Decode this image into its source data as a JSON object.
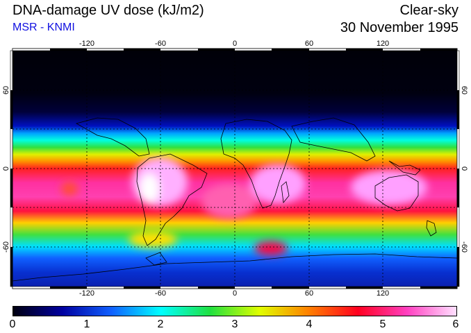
{
  "header": {
    "title": "DNA-damage UV dose (kJ/m2)",
    "source": "MSR - KNMI",
    "condition": "Clear-sky",
    "date": "30 November 1995"
  },
  "map": {
    "lon_ticks": [
      "-120",
      "-60",
      "0",
      "60",
      "120"
    ],
    "lat_ticks": [
      "60",
      "0",
      "-60"
    ],
    "lon_values": [
      -120,
      -60,
      0,
      60,
      120
    ],
    "lat_values": [
      60,
      0,
      -60
    ],
    "lon_range": [
      -180,
      180
    ],
    "lat_range": [
      90,
      -90
    ],
    "gridlines": true
  },
  "colorbar": {
    "labels": [
      "0",
      "1",
      "2",
      "3",
      "4",
      "5",
      "6"
    ],
    "min": 0,
    "max": 6,
    "colors": [
      "#000010",
      "#0000a0",
      "#1060ff",
      "#00ffff",
      "#20e040",
      "#e0ff00",
      "#ff8000",
      "#ff0020",
      "#ff40c0",
      "#ffe0ff"
    ]
  }
}
